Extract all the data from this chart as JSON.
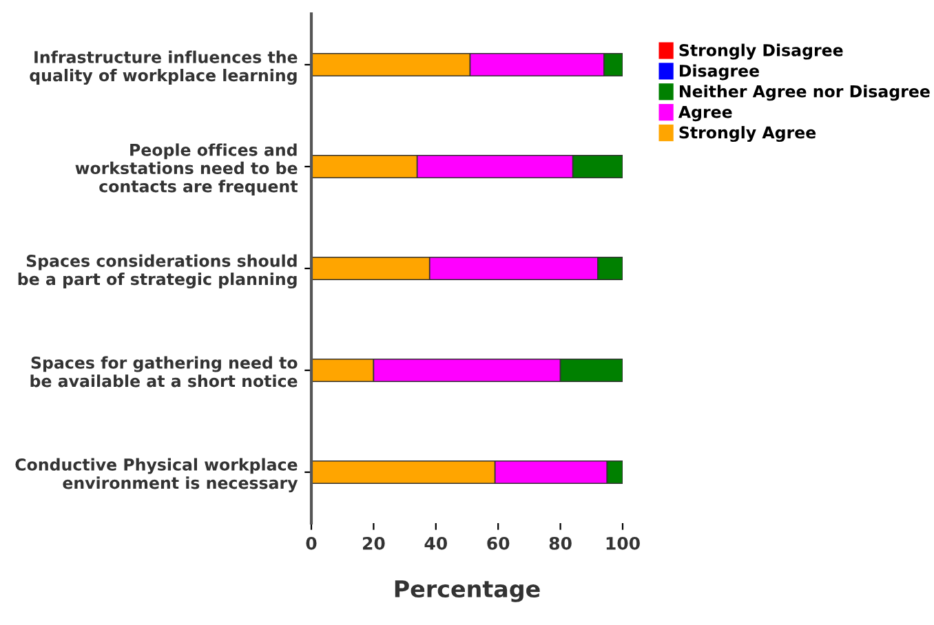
{
  "chart_data": {
    "type": "bar",
    "orientation": "horizontal",
    "stacked": true,
    "xlabel": "Percentage",
    "categories": [
      "Infrastructure influences the\nquality of workplace learning",
      "People offices and\nworkstations need to be\ncontacts are frequent",
      "Spaces considerations should\nbe a part of strategic planning",
      "Spaces for gathering need to\nbe available at a short notice",
      "Conductive Physical workplace\nenvironment is necessary"
    ],
    "series": [
      {
        "name": "Strongly Agree",
        "color": "#ffa500",
        "values": [
          51,
          34,
          38,
          20,
          59
        ]
      },
      {
        "name": "Agree",
        "color": "#ff00ff",
        "values": [
          43,
          50,
          54,
          60,
          36
        ]
      },
      {
        "name": "Neither Agree nor Disagree",
        "color": "#008000",
        "values": [
          6,
          16,
          8,
          20,
          5
        ]
      },
      {
        "name": "Disagree",
        "color": "#0000ff",
        "values": [
          0,
          0,
          0,
          0,
          0
        ]
      },
      {
        "name": "Strongly Disagree",
        "color": "#ff0000",
        "values": [
          0,
          0,
          0,
          0,
          0
        ]
      }
    ],
    "xlim": [
      0,
      100
    ],
    "xticks": [
      0,
      20,
      40,
      60,
      80,
      100
    ],
    "grid": false,
    "legend": "top right"
  }
}
